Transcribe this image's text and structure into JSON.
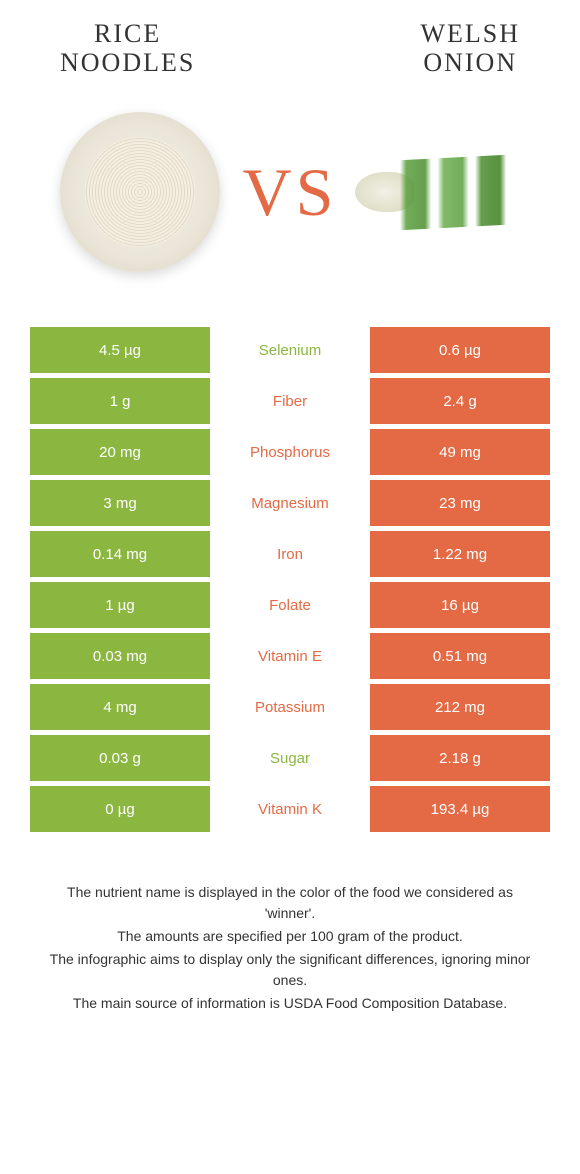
{
  "header": {
    "left_title_line1": "RICE",
    "left_title_line2": "NOODLES",
    "right_title_line1": "WELSH",
    "right_title_line2": "ONION"
  },
  "vs_label": "VS",
  "colors": {
    "green": "#8bb741",
    "orange": "#e36a45",
    "text_green": "#8bb741",
    "text_orange": "#e36a45",
    "white": "#ffffff"
  },
  "rows": [
    {
      "left": "4.5 µg",
      "mid": "Selenium",
      "right": "0.6 µg",
      "winner": "green"
    },
    {
      "left": "1 g",
      "mid": "Fiber",
      "right": "2.4 g",
      "winner": "orange"
    },
    {
      "left": "20 mg",
      "mid": "Phosphorus",
      "right": "49 mg",
      "winner": "orange"
    },
    {
      "left": "3 mg",
      "mid": "Magnesium",
      "right": "23 mg",
      "winner": "orange"
    },
    {
      "left": "0.14 mg",
      "mid": "Iron",
      "right": "1.22 mg",
      "winner": "orange"
    },
    {
      "left": "1 µg",
      "mid": "Folate",
      "right": "16 µg",
      "winner": "orange"
    },
    {
      "left": "0.03 mg",
      "mid": "Vitamin E",
      "right": "0.51 mg",
      "winner": "orange"
    },
    {
      "left": "4 mg",
      "mid": "Potassium",
      "right": "212 mg",
      "winner": "orange"
    },
    {
      "left": "0.03 g",
      "mid": "Sugar",
      "right": "2.18 g",
      "winner": "green"
    },
    {
      "left": "0 µg",
      "mid": "Vitamin K",
      "right": "193.4 µg",
      "winner": "orange"
    }
  ],
  "footer": {
    "line1": "The nutrient name is displayed in the color of the food we considered as 'winner'.",
    "line2": "The amounts are specified per 100 gram of the product.",
    "line3": "The infographic aims to display only the significant differences, ignoring minor ones.",
    "line4": "The main source of information is USDA Food Composition Database."
  }
}
